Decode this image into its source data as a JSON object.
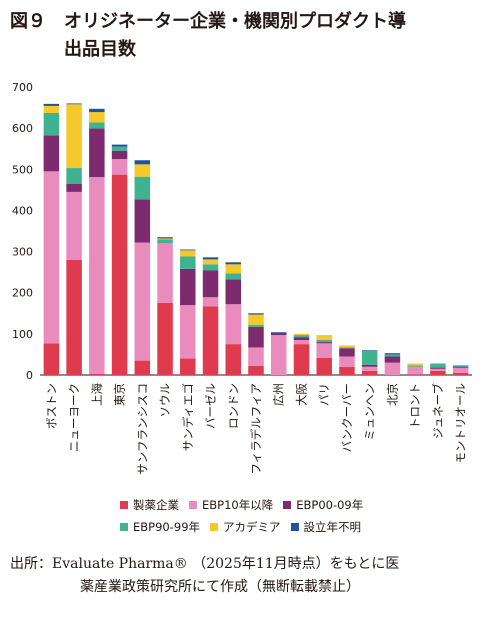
{
  "figure": {
    "title": "図９　オリジネーター企業・機関別プロダクト導\n　　　出品目数",
    "source_line1": "出所：Evaluate Pharma® （2025年11月時点）をもとに医",
    "source_line2": "薬産業政策研究所にて作成（無断転載禁止）"
  },
  "chart_data": {
    "type": "bar",
    "stacked": true,
    "ylim": [
      0,
      700
    ],
    "yticks": [
      0,
      100,
      200,
      300,
      400,
      500,
      600,
      700
    ],
    "grid": false,
    "legend_position": "bottom",
    "categories": [
      "ボストン",
      "ニューヨーク",
      "上海",
      "東京",
      "サンフランシスコ",
      "ソウル",
      "サンディエゴ",
      "バーゼル",
      "ロンドン",
      "フィラデルフィア",
      "広州",
      "大阪",
      "パリ",
      "バンクーバー",
      "ミュンヘン",
      "北京",
      "トロント",
      "ジュネーブ",
      "モントリオール"
    ],
    "series": [
      {
        "name": "製薬企業",
        "color": "#e03a4e",
        "values": [
          77,
          280,
          3,
          487,
          35,
          175,
          40,
          167,
          75,
          22,
          0,
          75,
          42,
          20,
          10,
          0,
          2,
          10,
          5
        ]
      },
      {
        "name": "EBP10年以降",
        "color": "#e98bbd",
        "values": [
          418,
          165,
          478,
          38,
          287,
          145,
          130,
          22,
          97,
          45,
          97,
          10,
          35,
          25,
          10,
          30,
          18,
          5,
          12
        ]
      },
      {
        "name": "EBP00-09年",
        "color": "#7e2a6e",
        "values": [
          87,
          20,
          118,
          20,
          105,
          0,
          88,
          65,
          60,
          50,
          5,
          7,
          3,
          20,
          5,
          15,
          0,
          3,
          2
        ]
      },
      {
        "name": "EBP90-99年",
        "color": "#3fb38f",
        "values": [
          55,
          38,
          15,
          10,
          55,
          10,
          30,
          15,
          15,
          5,
          0,
          5,
          5,
          2,
          33,
          5,
          3,
          10,
          2
        ]
      },
      {
        "name": "アカデミア",
        "color": "#f5c82b",
        "values": [
          17,
          155,
          25,
          0,
          30,
          2,
          15,
          12,
          22,
          25,
          0,
          3,
          12,
          5,
          0,
          0,
          5,
          0,
          0
        ]
      },
      {
        "name": "設立年不明",
        "color": "#20549a",
        "values": [
          5,
          2,
          8,
          5,
          10,
          3,
          2,
          5,
          5,
          3,
          2,
          0,
          0,
          0,
          2,
          3,
          0,
          0,
          2
        ]
      }
    ]
  }
}
